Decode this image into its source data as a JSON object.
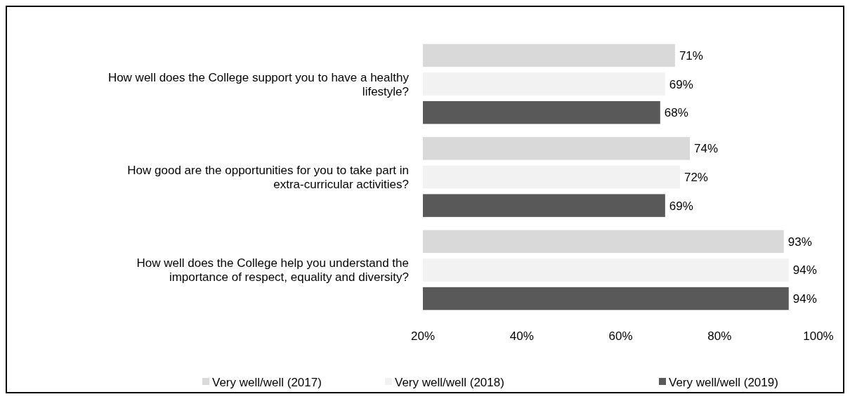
{
  "chart_data": {
    "type": "bar",
    "orientation": "horizontal",
    "categories": [
      "How well does the College support you to have a healthy lifestyle?",
      "How good are the opportunities for you to take part in extra-curricular activities?",
      "How well does the College help you understand the importance of respect, equality and diversity?"
    ],
    "series": [
      {
        "name": "Very well/well (2017)",
        "color": "#d9d9d9",
        "values": [
          71,
          74,
          93
        ],
        "value_labels": [
          "71%",
          "74%",
          "93%"
        ]
      },
      {
        "name": "Very well/well (2018)",
        "color": "#f2f2f2",
        "values": [
          69,
          72,
          94
        ],
        "value_labels": [
          "69%",
          "72%",
          "94%"
        ]
      },
      {
        "name": "Very well/well (2019)",
        "color": "#595959",
        "values": [
          68,
          69,
          94
        ],
        "value_labels": [
          "68%",
          "69%",
          "94%"
        ]
      }
    ],
    "xlim": [
      20,
      100
    ],
    "xticks": [
      {
        "value": 20,
        "label": "20%"
      },
      {
        "value": 40,
        "label": "40%"
      },
      {
        "value": 60,
        "label": "60%"
      },
      {
        "value": 80,
        "label": "80%"
      },
      {
        "value": 100,
        "label": "100%"
      }
    ],
    "legend": "bottom",
    "grid": false
  }
}
